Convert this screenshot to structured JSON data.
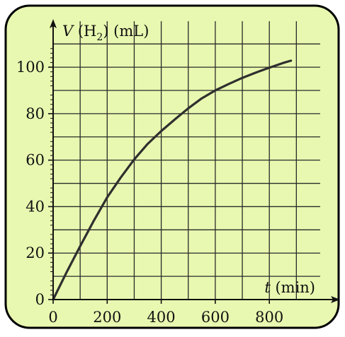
{
  "colors": {
    "panel_fill": "#e8f8b0",
    "panel_border": "#000000",
    "grid": "#2a2a2a",
    "curve": "#2f2f2f",
    "axis": "#111111"
  },
  "chart_data": {
    "type": "line",
    "title": "",
    "ylabel": {
      "var": "V",
      "pre": " (H",
      "sub": "2",
      "post": ") (mL)"
    },
    "xlabel": {
      "var": "t",
      "rest": " (min)"
    },
    "xlim": [
      0,
      950
    ],
    "ylim": [
      0,
      112
    ],
    "xticks": [
      0,
      200,
      400,
      600,
      800
    ],
    "yticks": [
      0,
      20,
      40,
      60,
      80,
      100
    ],
    "grid": true,
    "series": [
      {
        "x": [
          0,
          50,
          100,
          150,
          200,
          250,
          300,
          350,
          400,
          450,
          500,
          550,
          600,
          650,
          700,
          750,
          800,
          850,
          880
        ],
        "values": [
          0,
          11.8,
          23,
          33.8,
          44,
          52.5,
          60.3,
          67,
          72.5,
          77.5,
          82.3,
          86.6,
          90,
          92.8,
          95.4,
          97.7,
          99.8,
          101.8,
          102.8
        ]
      }
    ]
  }
}
